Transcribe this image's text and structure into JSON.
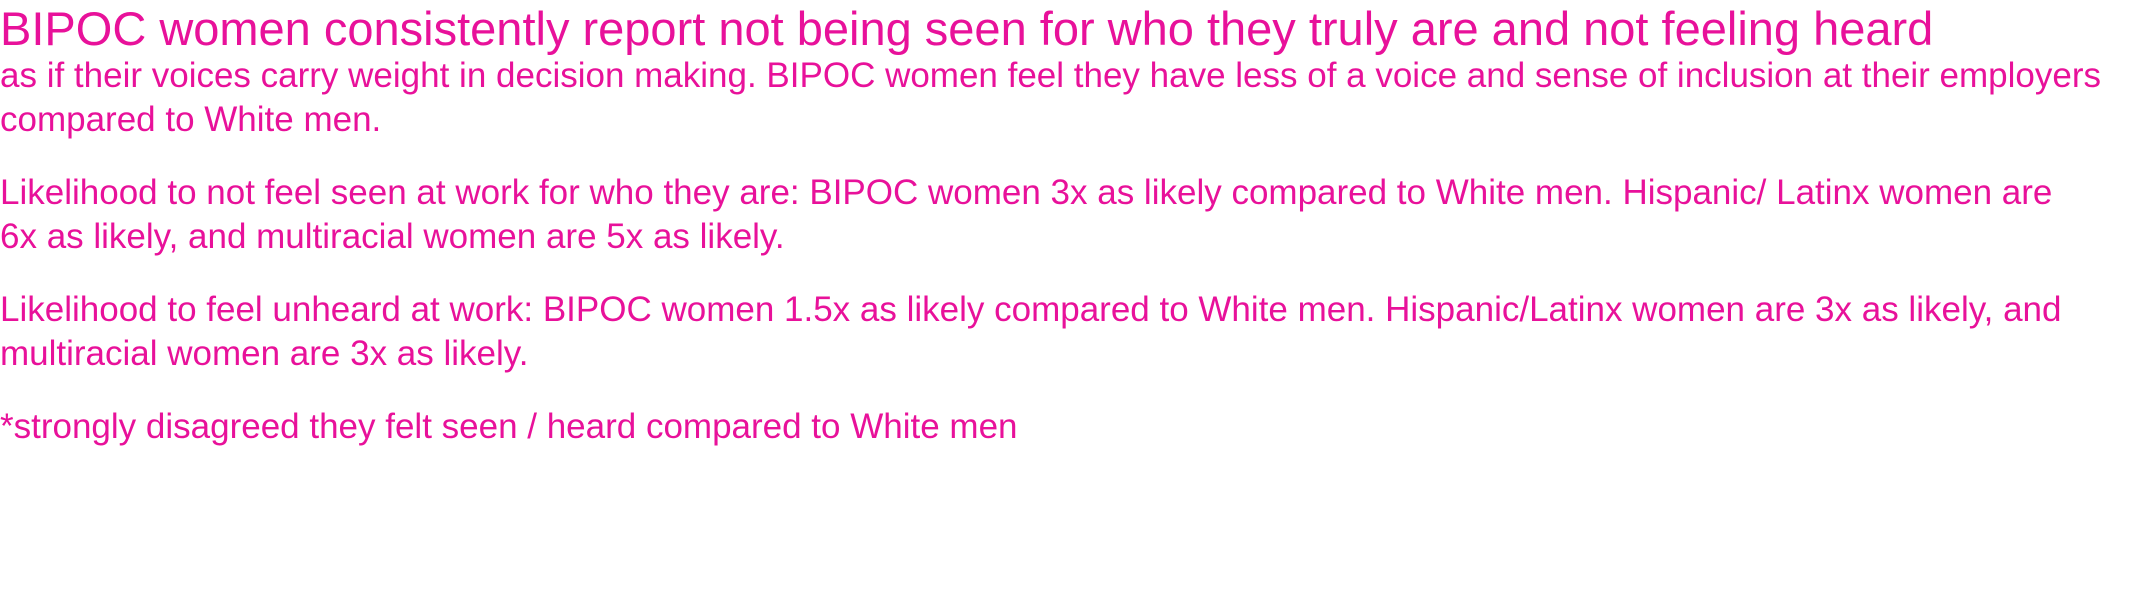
{
  "document": {
    "headline": "BIPOC women consistently report not being seen for who they truly are and not feeling heard",
    "intro": "as if their voices carry weight in decision making. BIPOC women feel they have less of a voice and sense of inclusion at their employers compared to White men.",
    "paragraphs": [
      "Likelihood to not feel seen at work for who they are:  BIPOC women 3x as likely compared to White men. Hispanic/ Latinx women are 6x as likely, and multiracial women are 5x as likely.",
      "Likelihood to feel unheard at work:  BIPOC women 1.5x as likely compared to White men. Hispanic/Latinx women are 3x as likely, and multiracial women are 3x as likely."
    ],
    "footnote": "*strongly disagreed they felt seen / heard compared to White men"
  },
  "colors": {
    "text": "#e8119a",
    "background": "#ffffff"
  }
}
